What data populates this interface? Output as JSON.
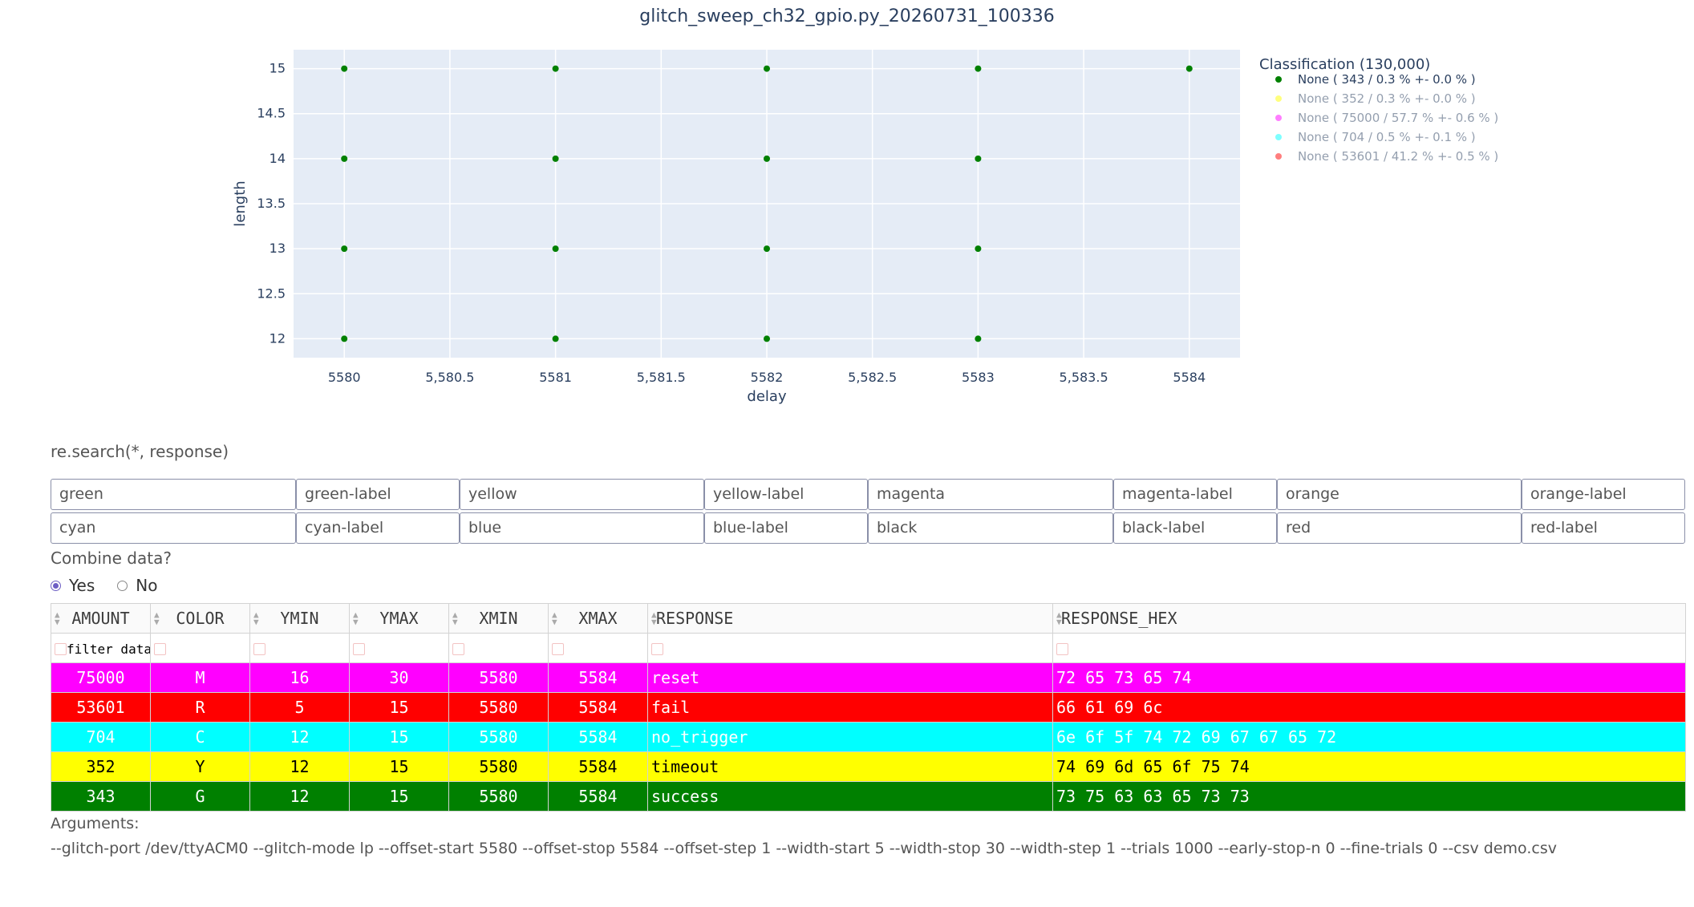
{
  "chart_data": {
    "type": "scatter",
    "title": "glitch_sweep_ch32_gpio.py_20260731_100336",
    "xlabel": "delay",
    "ylabel": "length",
    "xlim": [
      5579.76,
      5584.24
    ],
    "ylim": [
      11.79,
      15.21
    ],
    "x_ticks": [
      5580,
      5580.5,
      5581,
      5581.5,
      5582,
      5582.5,
      5583,
      5583.5,
      5584
    ],
    "x_tick_labels": [
      "5580",
      "5,580.5",
      "5581",
      "5,581.5",
      "5582",
      "5,582.5",
      "5583",
      "5,583.5",
      "5584"
    ],
    "y_ticks": [
      12,
      12.5,
      13,
      13.5,
      14,
      14.5,
      15
    ],
    "y_tick_labels": [
      "12",
      "12.5",
      "13",
      "13.5",
      "14",
      "14.5",
      "15"
    ],
    "grid": true,
    "legend_title": "Classification (130,000)",
    "legend_position": "right",
    "series": [
      {
        "name": "None ( 343 / 0.3 % +- 0.0 % )",
        "color": "#008000",
        "visible": true,
        "points": [
          [
            5580,
            15
          ],
          [
            5580,
            14
          ],
          [
            5580,
            13
          ],
          [
            5580,
            12
          ],
          [
            5581,
            15
          ],
          [
            5581,
            14
          ],
          [
            5581,
            13
          ],
          [
            5581,
            12
          ],
          [
            5582,
            15
          ],
          [
            5582,
            14
          ],
          [
            5582,
            13
          ],
          [
            5582,
            12
          ],
          [
            5583,
            15
          ],
          [
            5583,
            14
          ],
          [
            5583,
            13
          ],
          [
            5583,
            12
          ],
          [
            5584,
            15
          ]
        ]
      },
      {
        "name": "None ( 352 / 0.3 % +- 0.0 % )",
        "color": "#ffff00",
        "visible": false,
        "points": []
      },
      {
        "name": "None ( 75000 / 57.7 % +- 0.6 % )",
        "color": "#ff00ff",
        "visible": false,
        "points": []
      },
      {
        "name": "None ( 704 / 0.5 % +- 0.1 % )",
        "color": "#00ffff",
        "visible": false,
        "points": []
      },
      {
        "name": "None ( 53601 / 41.2 % +- 0.5 % )",
        "color": "#ff0000",
        "visible": false,
        "points": []
      }
    ]
  },
  "search_label": "re.search(*, response)",
  "color_inputs": [
    [
      "green",
      "green-label",
      "yellow",
      "yellow-label",
      "magenta",
      "magenta-label",
      "orange",
      "orange-label"
    ],
    [
      "cyan",
      "cyan-label",
      "blue",
      "blue-label",
      "black",
      "black-label",
      "red",
      "red-label"
    ]
  ],
  "combine": {
    "label": "Combine data?",
    "options": [
      "Yes",
      "No"
    ],
    "selected": "Yes"
  },
  "table": {
    "columns": [
      "AMOUNT",
      "COLOR",
      "YMIN",
      "YMAX",
      "XMIN",
      "XMAX",
      "RESPONSE",
      "RESPONSE_HEX"
    ],
    "filter_placeholder": "filter data...",
    "rows": [
      {
        "cells": [
          "75000",
          "M",
          "16",
          "30",
          "5580",
          "5584",
          "reset",
          "72 65 73 65 74"
        ],
        "bg": "#ff00ff",
        "fg": "#ffffff"
      },
      {
        "cells": [
          "53601",
          "R",
          "5",
          "15",
          "5580",
          "5584",
          "fail",
          "66 61 69 6c"
        ],
        "bg": "#ff0000",
        "fg": "#ffffff"
      },
      {
        "cells": [
          "704",
          "C",
          "12",
          "15",
          "5580",
          "5584",
          "no_trigger",
          "6e 6f 5f 74 72 69 67 67 65 72"
        ],
        "bg": "#00ffff",
        "fg": "#ffffff"
      },
      {
        "cells": [
          "352",
          "Y",
          "12",
          "15",
          "5580",
          "5584",
          "timeout",
          "74 69 6d 65 6f 75 74"
        ],
        "bg": "#ffff00",
        "fg": "#000000"
      },
      {
        "cells": [
          "343",
          "G",
          "12",
          "15",
          "5580",
          "5584",
          "success",
          "73 75 63 63 65 73 73"
        ],
        "bg": "#008000",
        "fg": "#ffffff"
      }
    ]
  },
  "arguments": {
    "label": "Arguments:",
    "text": "--glitch-port /dev/ttyACM0 --glitch-mode lp --offset-start 5580 --offset-stop 5584 --offset-step 1 --width-start 5 --width-stop 30 --width-step 1 --trials 1000 --early-stop-n 0 --fine-trials 0 --csv demo.csv"
  }
}
